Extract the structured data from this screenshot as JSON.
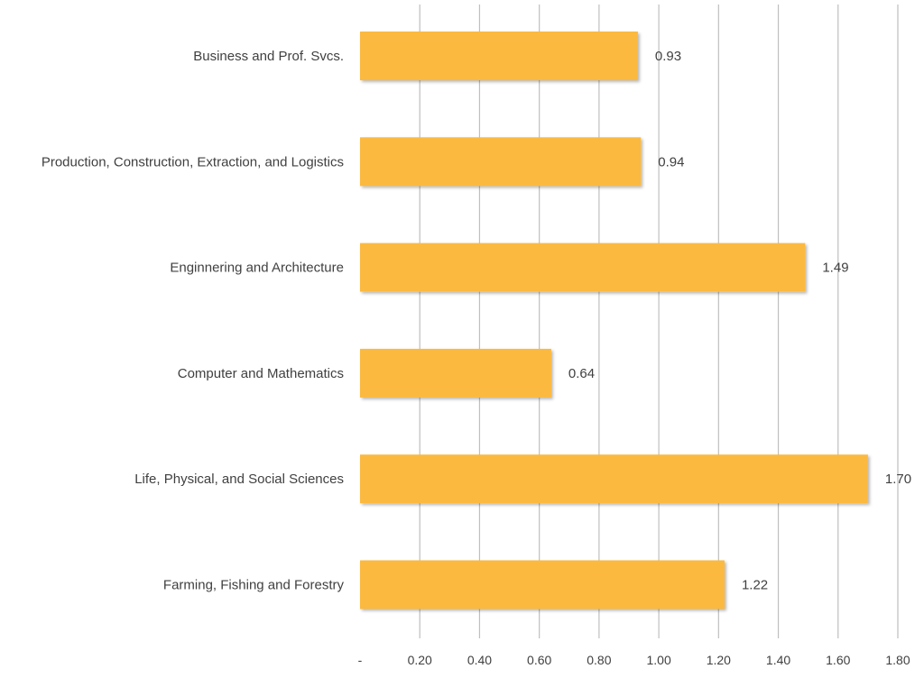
{
  "chart_data": {
    "type": "bar",
    "orientation": "horizontal",
    "title": "",
    "xlabel": "",
    "ylabel": "",
    "categories": [
      "Business and Prof. Svcs.",
      "Production, Construction, Extraction, and Logistics",
      "Enginnering and Architecture",
      "Computer and Mathematics",
      "Life, Physical, and Social Sciences",
      "Farming, Fishing and Forestry"
    ],
    "values": [
      0.93,
      0.94,
      1.49,
      0.64,
      1.7,
      1.22
    ],
    "value_labels": [
      "0.93",
      "0.94",
      "1.49",
      "0.64",
      "1.70",
      "1.22"
    ],
    "xlim": [
      0,
      1.8
    ],
    "x_ticks": [
      0,
      0.2,
      0.4,
      0.6,
      0.8,
      1.0,
      1.2,
      1.4,
      1.6,
      1.8
    ],
    "x_tick_labels": [
      "-",
      "0.20",
      "0.40",
      "0.60",
      "0.80",
      "1.00",
      "1.20",
      "1.40",
      "1.60",
      "1.80"
    ],
    "grid": "vertical",
    "legend": "none",
    "colors": {
      "bar": "#FBB941",
      "grid": "#BFBFBF",
      "text": "#404040"
    }
  }
}
